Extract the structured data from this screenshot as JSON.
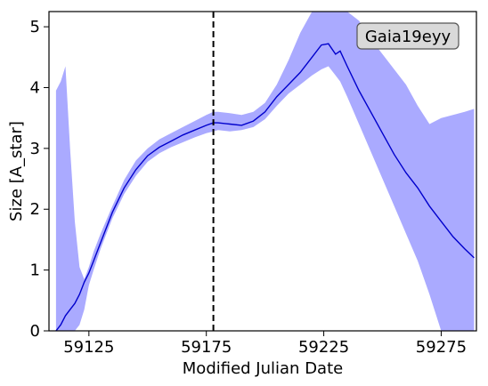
{
  "chart_data": {
    "type": "line",
    "title": "",
    "xlabel": "Modified Julian Date",
    "ylabel": "Size [A_star]",
    "xlim": [
      59108,
      59290
    ],
    "ylim": [
      0,
      5.25
    ],
    "xticks": [
      59125,
      59175,
      59225,
      59275
    ],
    "xtick_labels": [
      "59125",
      "59175",
      "59225",
      "59275"
    ],
    "yticks": [
      0,
      1,
      2,
      3,
      4,
      5
    ],
    "ytick_labels": [
      "0",
      "1",
      "2",
      "3",
      "4",
      "5"
    ],
    "grid": false,
    "annotation_box": "Gaia19eyy",
    "annotation_placement": "top-right",
    "vline": {
      "x": 59178,
      "style": "dashed",
      "color": "#000000"
    },
    "series": [
      {
        "x": [
          59111,
          59113,
          59115,
          59117,
          59119,
          59121,
          59123,
          59125,
          59127,
          59130,
          59135,
          59140,
          59145,
          59150,
          59155,
          59160,
          59165,
          59170,
          59175,
          59178,
          59180,
          59185,
          59190,
          59195,
          59200,
          59205,
          59210,
          59215,
          59220,
          59224,
          59227,
          59230,
          59232,
          59235,
          59240,
          59245,
          59250,
          59255,
          59260,
          59265,
          59270,
          59275,
          59280,
          59285,
          59289
        ],
        "y": [
          0.0,
          0.1,
          0.25,
          0.35,
          0.45,
          0.6,
          0.8,
          0.95,
          1.15,
          1.45,
          1.95,
          2.35,
          2.65,
          2.88,
          3.02,
          3.12,
          3.22,
          3.3,
          3.38,
          3.42,
          3.42,
          3.4,
          3.38,
          3.45,
          3.6,
          3.85,
          4.05,
          4.25,
          4.5,
          4.7,
          4.72,
          4.55,
          4.6,
          4.35,
          3.95,
          3.6,
          3.25,
          2.9,
          2.6,
          2.35,
          2.05,
          1.8,
          1.55,
          1.35,
          1.2
        ],
        "y_lower": [
          0.0,
          0.0,
          0.0,
          0.0,
          0.0,
          0.1,
          0.35,
          0.75,
          1.0,
          1.35,
          1.85,
          2.25,
          2.55,
          2.78,
          2.92,
          3.02,
          3.1,
          3.18,
          3.25,
          3.28,
          3.3,
          3.28,
          3.3,
          3.35,
          3.48,
          3.7,
          3.9,
          4.05,
          4.2,
          4.3,
          4.35,
          4.2,
          4.1,
          3.85,
          3.4,
          2.95,
          2.5,
          2.05,
          1.6,
          1.15,
          0.6,
          0.0,
          0.0,
          0.0,
          0.0
        ],
        "y_upper": [
          3.95,
          4.1,
          4.35,
          3.0,
          1.8,
          1.05,
          0.85,
          1.05,
          1.3,
          1.6,
          2.05,
          2.48,
          2.8,
          3.0,
          3.15,
          3.25,
          3.35,
          3.45,
          3.55,
          3.6,
          3.6,
          3.58,
          3.55,
          3.6,
          3.75,
          4.05,
          4.45,
          4.9,
          5.25,
          5.25,
          5.25,
          5.25,
          5.25,
          5.25,
          5.1,
          4.8,
          4.55,
          4.3,
          4.05,
          3.7,
          3.4,
          3.5,
          3.55,
          3.6,
          3.65
        ]
      }
    ],
    "colors": {
      "line": "#0000cc",
      "band": "#aaaaff",
      "annotation_bg": "#d9d9d9",
      "annotation_border": "#555555"
    }
  }
}
